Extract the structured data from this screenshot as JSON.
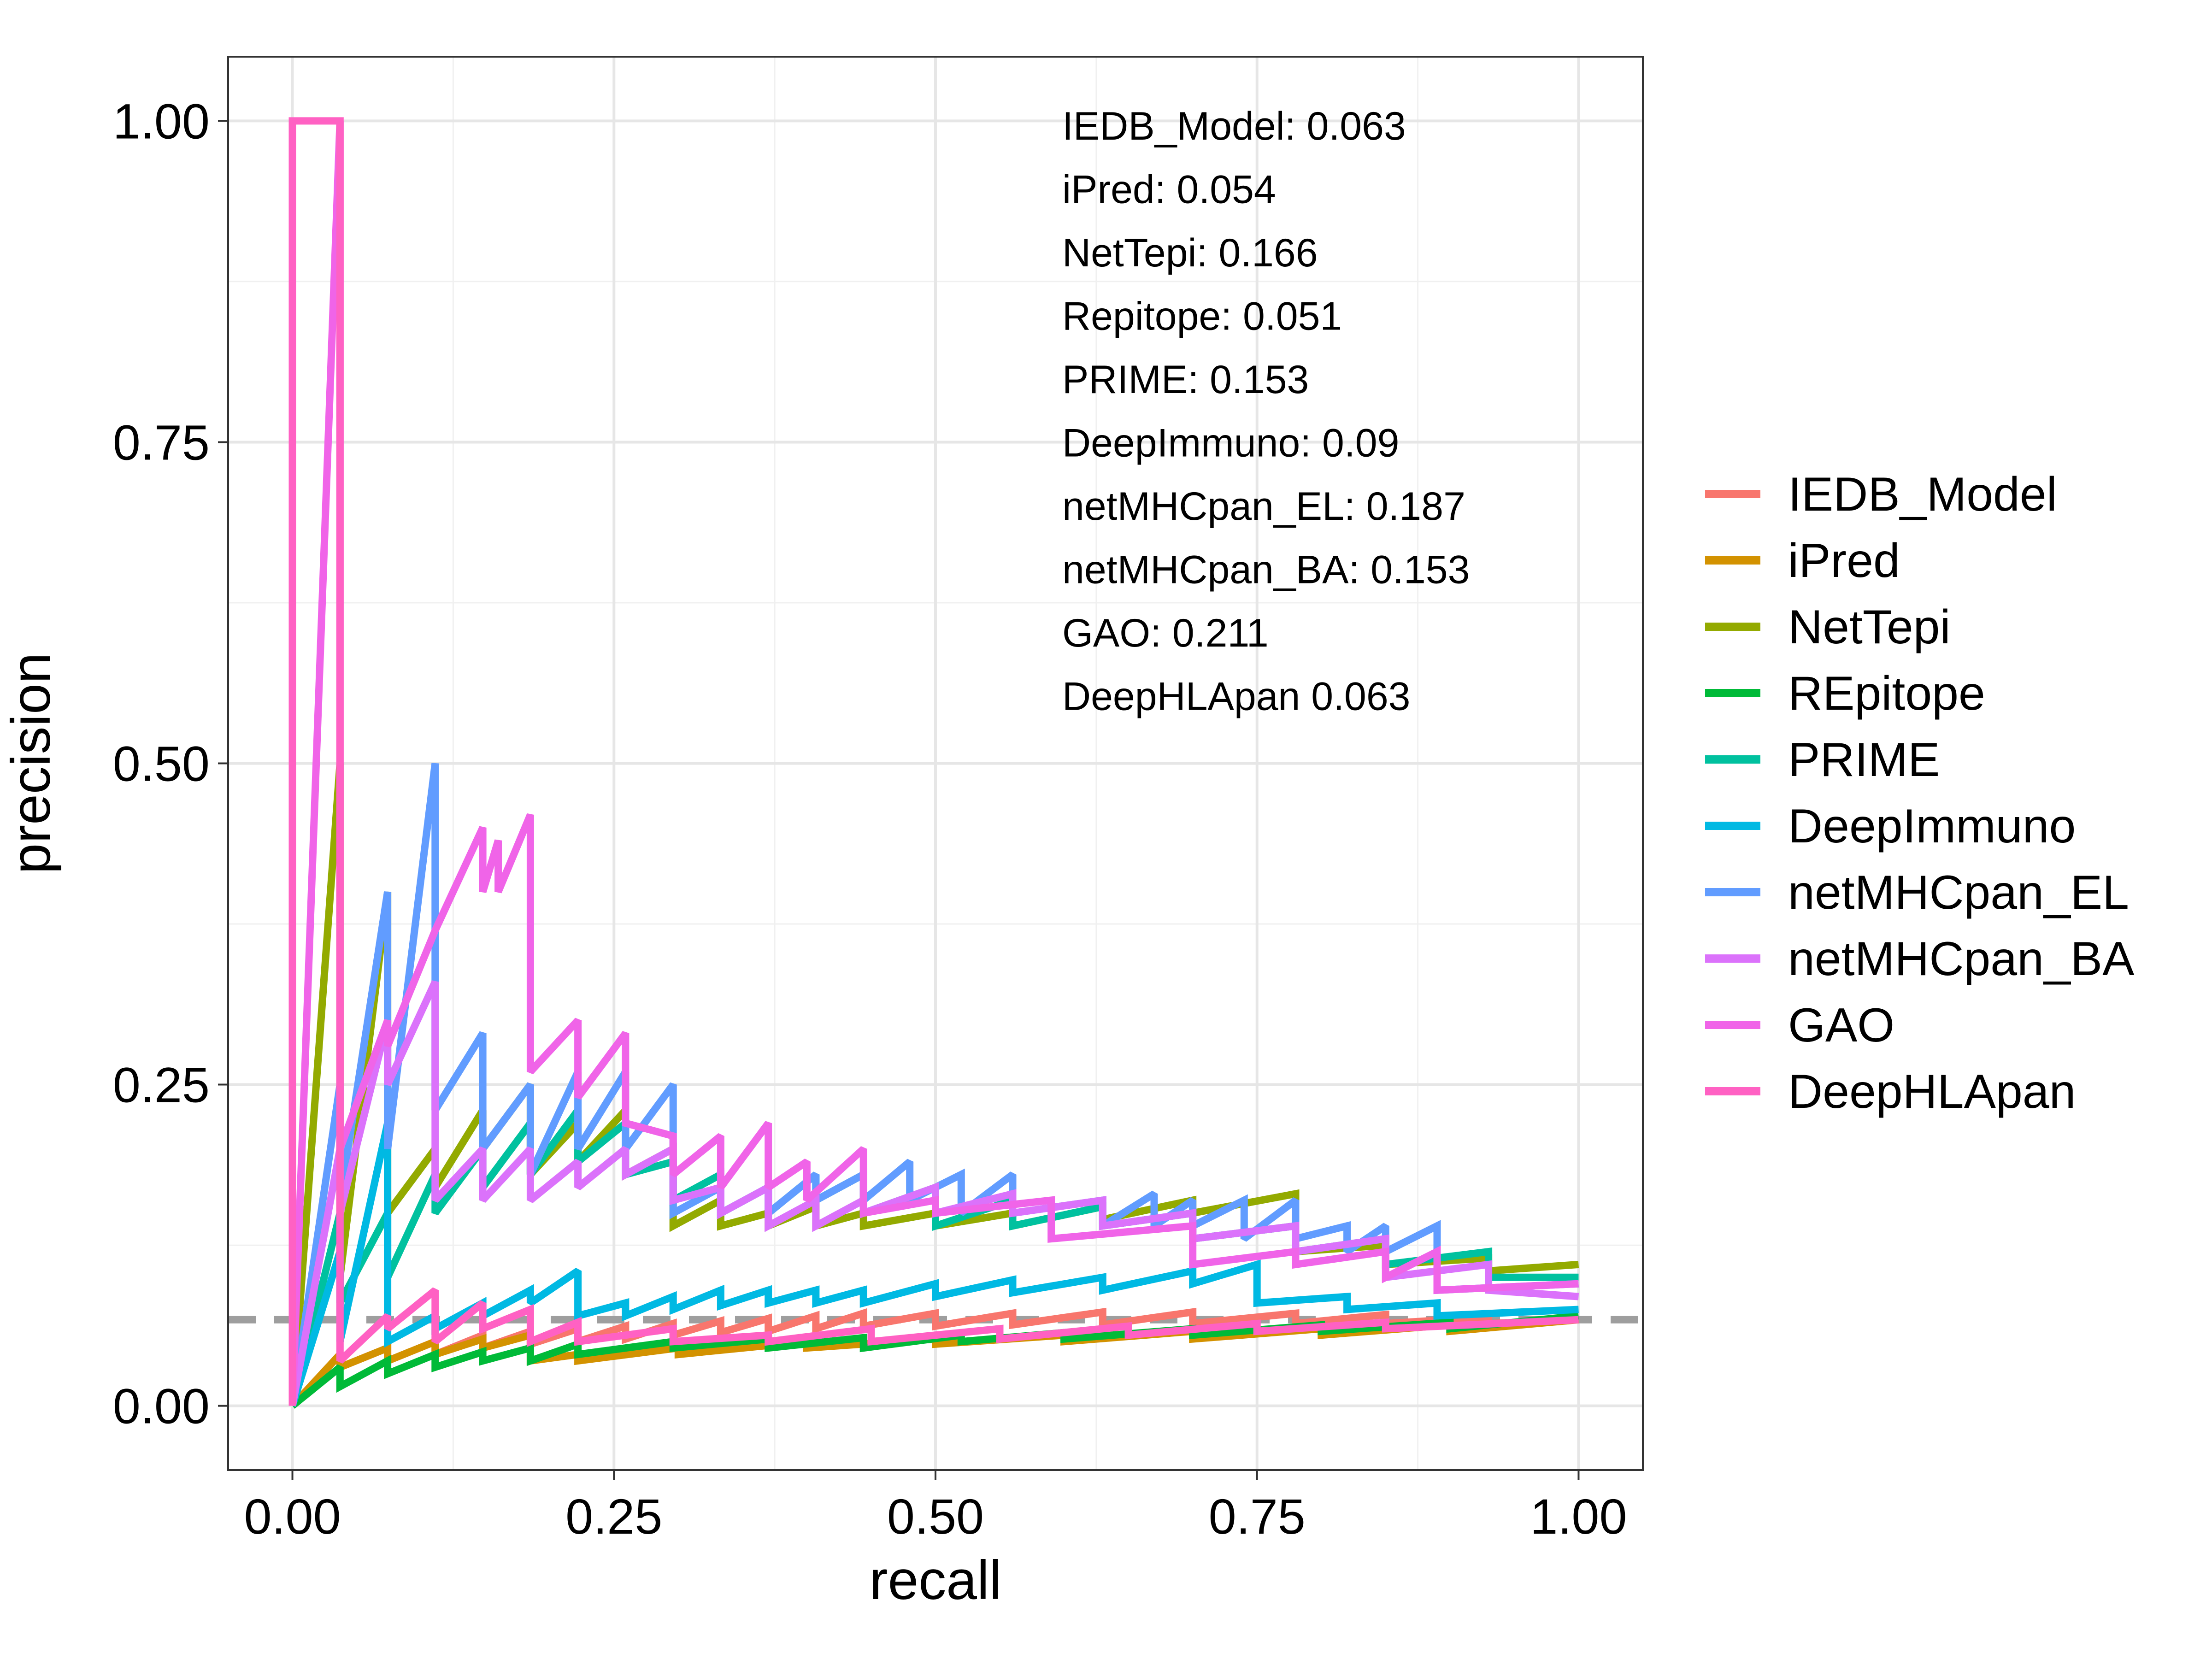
{
  "chart_data": {
    "type": "line",
    "xlabel": "recall",
    "ylabel": "precision",
    "xlim": [
      -0.05,
      1.05
    ],
    "ylim": [
      -0.05,
      1.05
    ],
    "x_ticks": [
      "0.00",
      "0.25",
      "0.50",
      "0.75",
      "1.00"
    ],
    "y_ticks": [
      "0.00",
      "0.25",
      "0.50",
      "0.75",
      "1.00"
    ],
    "grid": true,
    "legend_position": "right",
    "baseline": {
      "y": 0.067,
      "color": "#9e9e9e",
      "style": "dashed"
    },
    "annotations": [
      "IEDB_Model: 0.063",
      "iPred: 0.054",
      "NetTepi: 0.166",
      "Repitope: 0.051",
      "PRIME: 0.153",
      "DeepImmuno: 0.09",
      "netMHCpan_EL: 0.187",
      "netMHCpan_BA: 0.153",
      "GAO: 0.211",
      "DeepHLApan 0.063"
    ],
    "series": [
      {
        "name": "IEDB_Model",
        "color": "#F8766D",
        "x": [
          0,
          0.037,
          0.037,
          0.074,
          0.074,
          0.111,
          0.111,
          0.148,
          0.148,
          0.185,
          0.185,
          0.222,
          0.222,
          0.259,
          0.259,
          0.296,
          0.296,
          0.333,
          0.333,
          0.37,
          0.37,
          0.407,
          0.407,
          0.444,
          0.444,
          0.5,
          0.5,
          0.56,
          0.56,
          0.63,
          0.63,
          0.7,
          0.7,
          0.78,
          0.78,
          0.85,
          0.85,
          0.93,
          0.93,
          1.0
        ],
        "y": [
          0,
          0.04,
          0.03,
          0.045,
          0.035,
          0.05,
          0.04,
          0.055,
          0.045,
          0.058,
          0.048,
          0.06,
          0.05,
          0.062,
          0.052,
          0.064,
          0.055,
          0.066,
          0.057,
          0.068,
          0.058,
          0.07,
          0.06,
          0.072,
          0.062,
          0.072,
          0.062,
          0.072,
          0.063,
          0.073,
          0.063,
          0.073,
          0.064,
          0.072,
          0.064,
          0.071,
          0.064,
          0.069,
          0.064,
          0.067
        ]
      },
      {
        "name": "iPred",
        "color": "#D39200",
        "x": [
          0,
          0.037,
          0.037,
          0.074,
          0.074,
          0.111,
          0.111,
          0.148,
          0.148,
          0.185,
          0.185,
          0.222,
          0.222,
          0.3,
          0.3,
          0.4,
          0.4,
          0.5,
          0.5,
          0.6,
          0.6,
          0.7,
          0.7,
          0.8,
          0.8,
          0.9,
          0.9,
          1.0
        ],
        "y": [
          0,
          0.04,
          0.03,
          0.045,
          0.035,
          0.05,
          0.04,
          0.052,
          0.045,
          0.055,
          0.035,
          0.04,
          0.035,
          0.045,
          0.04,
          0.05,
          0.045,
          0.052,
          0.048,
          0.055,
          0.05,
          0.058,
          0.052,
          0.06,
          0.055,
          0.063,
          0.058,
          0.067
        ]
      },
      {
        "name": "NetTepi",
        "color": "#93AA00",
        "x": [
          0,
          0.037,
          0.037,
          0.074,
          0.074,
          0.111,
          0.111,
          0.148,
          0.148,
          0.185,
          0.185,
          0.222,
          0.222,
          0.259,
          0.259,
          0.296,
          0.296,
          0.333,
          0.333,
          0.37,
          0.37,
          0.407,
          0.407,
          0.444,
          0.444,
          0.5,
          0.5,
          0.56,
          0.56,
          0.63,
          0.63,
          0.7,
          0.7,
          0.78,
          0.78,
          0.85,
          0.85,
          0.93,
          0.93,
          1.0
        ],
        "y": [
          0,
          0.5,
          0.1,
          0.4,
          0.15,
          0.2,
          0.17,
          0.23,
          0.2,
          0.25,
          0.18,
          0.22,
          0.19,
          0.23,
          0.18,
          0.2,
          0.14,
          0.16,
          0.14,
          0.15,
          0.14,
          0.155,
          0.14,
          0.15,
          0.14,
          0.15,
          0.14,
          0.15,
          0.14,
          0.155,
          0.145,
          0.16,
          0.15,
          0.165,
          0.12,
          0.125,
          0.11,
          0.115,
          0.105,
          0.11
        ]
      },
      {
        "name": "REpitope",
        "color": "#00BA38",
        "x": [
          0,
          0.037,
          0.037,
          0.074,
          0.074,
          0.111,
          0.111,
          0.148,
          0.148,
          0.185,
          0.185,
          0.222,
          0.222,
          0.296,
          0.296,
          0.37,
          0.37,
          0.444,
          0.444,
          0.52,
          0.52,
          0.6,
          0.6,
          0.7,
          0.7,
          0.8,
          0.8,
          0.9,
          0.9,
          1.0
        ],
        "y": [
          0,
          0.03,
          0.015,
          0.035,
          0.025,
          0.04,
          0.03,
          0.042,
          0.035,
          0.045,
          0.035,
          0.048,
          0.04,
          0.05,
          0.045,
          0.052,
          0.045,
          0.053,
          0.045,
          0.055,
          0.05,
          0.057,
          0.052,
          0.06,
          0.055,
          0.063,
          0.058,
          0.065,
          0.06,
          0.07
        ]
      },
      {
        "name": "PRIME",
        "color": "#00C19F",
        "x": [
          0,
          0.037,
          0.037,
          0.074,
          0.074,
          0.111,
          0.111,
          0.148,
          0.148,
          0.185,
          0.185,
          0.222,
          0.222,
          0.259,
          0.259,
          0.296,
          0.296,
          0.333,
          0.333,
          0.37,
          0.37,
          0.407,
          0.407,
          0.444,
          0.444,
          0.5,
          0.5,
          0.56,
          0.56,
          0.63,
          0.63,
          0.7,
          0.7,
          0.78,
          0.78,
          0.85,
          0.85,
          0.93,
          0.93,
          1.0
        ],
        "y": [
          0,
          0.15,
          0.08,
          0.15,
          0.1,
          0.18,
          0.15,
          0.2,
          0.17,
          0.22,
          0.18,
          0.23,
          0.19,
          0.22,
          0.18,
          0.19,
          0.16,
          0.18,
          0.15,
          0.17,
          0.15,
          0.18,
          0.16,
          0.18,
          0.15,
          0.17,
          0.14,
          0.16,
          0.14,
          0.155,
          0.14,
          0.15,
          0.13,
          0.14,
          0.12,
          0.13,
          0.11,
          0.12,
          0.1,
          0.1
        ]
      },
      {
        "name": "DeepImmuno",
        "color": "#00B9E3",
        "x": [
          0,
          0.037,
          0.037,
          0.074,
          0.074,
          0.111,
          0.111,
          0.148,
          0.148,
          0.185,
          0.185,
          0.222,
          0.222,
          0.259,
          0.259,
          0.296,
          0.296,
          0.333,
          0.333,
          0.37,
          0.37,
          0.407,
          0.407,
          0.444,
          0.444,
          0.5,
          0.5,
          0.56,
          0.56,
          0.63,
          0.63,
          0.7,
          0.7,
          0.75,
          0.75,
          0.82,
          0.82,
          0.89,
          0.89,
          1.0
        ],
        "y": [
          0,
          0.12,
          0.05,
          0.22,
          0.05,
          0.07,
          0.06,
          0.08,
          0.07,
          0.09,
          0.08,
          0.105,
          0.07,
          0.08,
          0.07,
          0.085,
          0.075,
          0.09,
          0.078,
          0.09,
          0.08,
          0.09,
          0.08,
          0.09,
          0.08,
          0.095,
          0.085,
          0.098,
          0.088,
          0.1,
          0.09,
          0.105,
          0.095,
          0.11,
          0.08,
          0.085,
          0.075,
          0.08,
          0.07,
          0.075
        ]
      },
      {
        "name": "netMHCpan_EL",
        "color": "#619CFF",
        "x": [
          0,
          0.037,
          0.037,
          0.074,
          0.074,
          0.111,
          0.111,
          0.148,
          0.148,
          0.185,
          0.185,
          0.222,
          0.222,
          0.259,
          0.259,
          0.296,
          0.296,
          0.333,
          0.333,
          0.37,
          0.37,
          0.407,
          0.407,
          0.444,
          0.444,
          0.48,
          0.48,
          0.52,
          0.52,
          0.56,
          0.56,
          0.63,
          0.63,
          0.67,
          0.67,
          0.7,
          0.7,
          0.74,
          0.74,
          0.78,
          0.78,
          0.82,
          0.82,
          0.85,
          0.85,
          0.89,
          0.89,
          1.0
        ],
        "y": [
          0,
          0.25,
          0.16,
          0.4,
          0.2,
          0.5,
          0.23,
          0.29,
          0.2,
          0.25,
          0.18,
          0.26,
          0.2,
          0.26,
          0.2,
          0.25,
          0.15,
          0.17,
          0.15,
          0.17,
          0.15,
          0.18,
          0.16,
          0.18,
          0.16,
          0.19,
          0.16,
          0.18,
          0.15,
          0.18,
          0.15,
          0.16,
          0.14,
          0.165,
          0.14,
          0.16,
          0.14,
          0.16,
          0.13,
          0.16,
          0.13,
          0.14,
          0.12,
          0.14,
          0.12,
          0.14,
          0.09,
          0.095
        ]
      },
      {
        "name": "netMHCpan_BA",
        "color": "#DB72FB",
        "x": [
          0,
          0.037,
          0.037,
          0.074,
          0.074,
          0.111,
          0.111,
          0.148,
          0.148,
          0.185,
          0.185,
          0.222,
          0.222,
          0.259,
          0.259,
          0.296,
          0.296,
          0.333,
          0.333,
          0.37,
          0.37,
          0.407,
          0.407,
          0.444,
          0.444,
          0.5,
          0.5,
          0.56,
          0.56,
          0.63,
          0.63,
          0.7,
          0.7,
          0.78,
          0.78,
          0.85,
          0.85,
          0.93,
          0.93,
          1.0
        ],
        "y": [
          0,
          0.2,
          0.15,
          0.3,
          0.25,
          0.33,
          0.16,
          0.2,
          0.16,
          0.2,
          0.16,
          0.19,
          0.17,
          0.2,
          0.18,
          0.2,
          0.16,
          0.17,
          0.15,
          0.17,
          0.14,
          0.16,
          0.14,
          0.16,
          0.15,
          0.17,
          0.15,
          0.165,
          0.15,
          0.16,
          0.14,
          0.15,
          0.13,
          0.14,
          0.12,
          0.13,
          0.1,
          0.11,
          0.09,
          0.085
        ]
      },
      {
        "name": "GAO",
        "color": "#F064E8",
        "x": [
          0,
          0.037,
          0.037,
          0.074,
          0.074,
          0.111,
          0.111,
          0.148,
          0.148,
          0.16,
          0.16,
          0.185,
          0.185,
          0.222,
          0.222,
          0.259,
          0.259,
          0.296,
          0.296,
          0.333,
          0.333,
          0.37,
          0.37,
          0.4,
          0.4,
          0.444,
          0.444,
          0.5,
          0.5,
          0.59,
          0.59,
          0.7,
          0.7,
          0.78,
          0.78,
          0.85,
          0.85,
          0.89,
          0.89,
          1.0
        ],
        "y": [
          0,
          1.0,
          0.2,
          0.3,
          0.28,
          0.37,
          0.37,
          0.45,
          0.4,
          0.44,
          0.4,
          0.46,
          0.26,
          0.3,
          0.24,
          0.29,
          0.22,
          0.21,
          0.18,
          0.21,
          0.17,
          0.22,
          0.17,
          0.19,
          0.16,
          0.2,
          0.15,
          0.16,
          0.15,
          0.16,
          0.13,
          0.14,
          0.11,
          0.12,
          0.11,
          0.12,
          0.1,
          0.12,
          0.09,
          0.095
        ]
      },
      {
        "name": "DeepHLApan",
        "color": "#FF61C3",
        "x": [
          0,
          0,
          0.037,
          0.037,
          0.074,
          0.074,
          0.111,
          0.111,
          0.148,
          0.148,
          0.185,
          0.185,
          0.222,
          0.222,
          0.296,
          0.296,
          0.37,
          0.37,
          0.45,
          0.45,
          0.55,
          0.55,
          0.65,
          0.65,
          0.75,
          0.75,
          0.85,
          0.85,
          1.0
        ],
        "y": [
          0,
          1.0,
          1.0,
          0.035,
          0.07,
          0.06,
          0.09,
          0.05,
          0.08,
          0.06,
          0.075,
          0.05,
          0.065,
          0.05,
          0.06,
          0.05,
          0.055,
          0.05,
          0.06,
          0.05,
          0.06,
          0.052,
          0.062,
          0.055,
          0.064,
          0.058,
          0.065,
          0.06,
          0.067
        ]
      }
    ]
  }
}
